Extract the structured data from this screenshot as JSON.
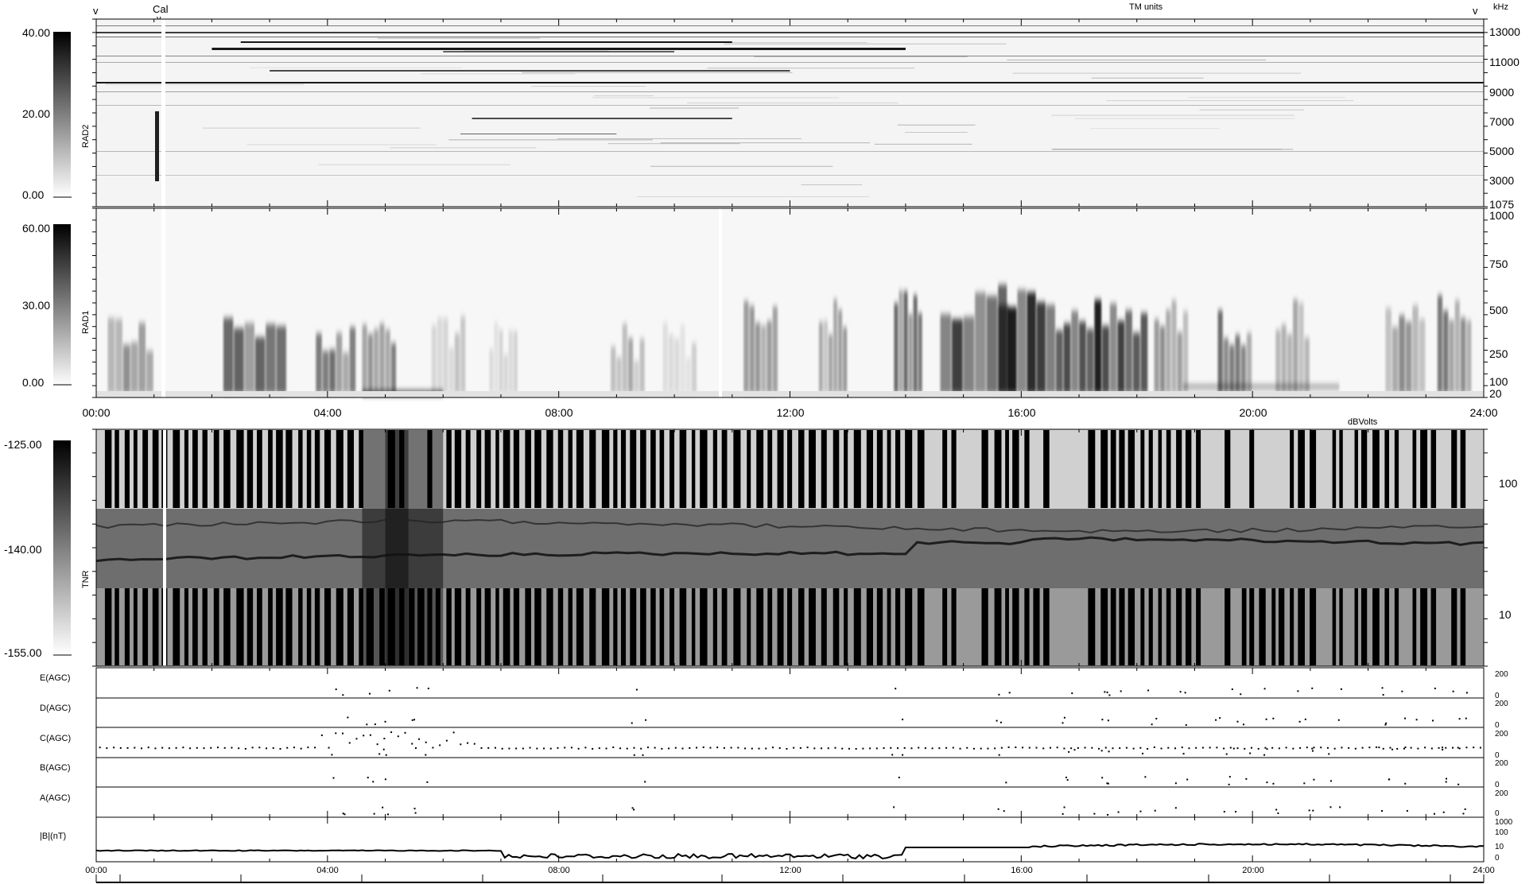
{
  "header": {
    "left_marker": "v",
    "cal_label": "Cal",
    "cal_marker": "v",
    "tm_units": "TM units",
    "right_marker": "v",
    "khz": "kHz",
    "dbvolts": "dBVolts"
  },
  "chart_data": [
    {
      "type": "heatmap",
      "name": "RAD2",
      "colorbar": {
        "ticks": [
          "40.00",
          "20.00",
          "0.00"
        ],
        "range": [
          0,
          40
        ]
      },
      "y_ticks": [
        "13000",
        "11000",
        "9000",
        "7000",
        "5000",
        "3000",
        "1075"
      ],
      "ylim": [
        1075,
        14000
      ]
    },
    {
      "type": "heatmap",
      "name": "RAD1",
      "colorbar": {
        "ticks": [
          "60.00",
          "30.00",
          "0.00"
        ],
        "range": [
          0,
          60
        ]
      },
      "y_ticks": [
        "1000",
        "750",
        "500",
        "250",
        "100",
        "20"
      ],
      "ylim": [
        20,
        1000
      ],
      "x_ticks": [
        "00:00",
        "04:00",
        "08:00",
        "12:00",
        "16:00",
        "20:00",
        "24:00"
      ]
    },
    {
      "type": "heatmap",
      "name": "TNR",
      "colorbar": {
        "ticks": [
          "-125.00",
          "-140.00",
          "-155.00"
        ],
        "range": [
          -155,
          -125
        ]
      },
      "y_ticks": [
        "100",
        "10"
      ],
      "scale": "log"
    },
    {
      "type": "scatter",
      "panels": [
        {
          "name": "E(AGC)",
          "y_ticks": [
            "200",
            "0"
          ]
        },
        {
          "name": "D(AGC)",
          "y_ticks": [
            "200",
            "0"
          ]
        },
        {
          "name": "C(AGC)",
          "y_ticks": [
            "200",
            "0"
          ]
        },
        {
          "name": "B(AGC)",
          "y_ticks": [
            "200",
            "0"
          ]
        },
        {
          "name": "A(AGC)",
          "y_ticks": [
            "200",
            "0"
          ]
        }
      ]
    },
    {
      "type": "line",
      "name": "|B|(nT)",
      "y_ticks": [
        "1000",
        "100",
        "10",
        "0"
      ],
      "scale": "log",
      "x_ticks": [
        "00:00",
        "04:00",
        "08:00",
        "12:00",
        "16:00",
        "20:00",
        "24:00"
      ],
      "xlim": [
        "00:00",
        "24:00"
      ]
    }
  ]
}
